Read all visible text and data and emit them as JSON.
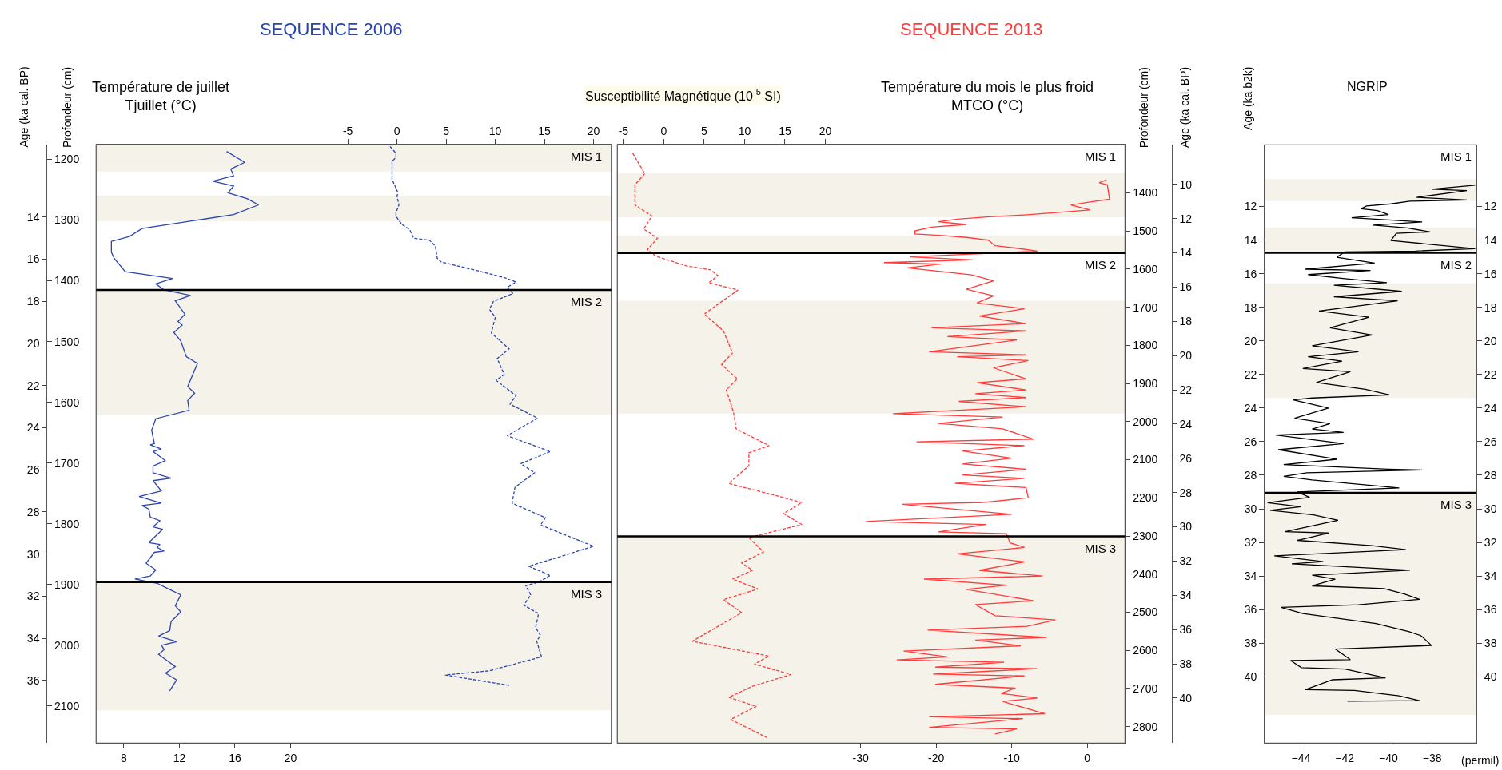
{
  "chart_data": [
    {
      "type": "line",
      "title": "SEQUENCE 2006",
      "xlabel": "Température de juillet\nTjuillet (°C)",
      "x2label": "Susceptibilité Magnétique (10$^{-5}$ SI)",
      "ylabel": "Profondeur (cm)",
      "y2label": "Age (ka cal. BP)",
      "xlim": [
        6,
        43.1
      ],
      "xticks": [
        8,
        12,
        16,
        20
      ],
      "x2lim": [
        -30.6,
        21.8
      ],
      "x2ticks": [
        -5,
        0,
        5,
        10,
        15,
        20
      ],
      "ylim": [
        2161,
        1176
      ],
      "yticks": [
        1200,
        1300,
        1400,
        1500,
        1600,
        1700,
        1800,
        1900,
        2000,
        2100
      ],
      "y2lim": [
        38.97,
        10.57
      ],
      "y2ticks": [
        14,
        16,
        18,
        20,
        22,
        24,
        26,
        28,
        30,
        32,
        34,
        36
      ],
      "series": [
        {
          "color": "#2a44b0",
          "line_style": "solid",
          "x": [
            15.4,
            16.7,
            15.7,
            15.9,
            14.4,
            15.9,
            15.5,
            16.9,
            17.7,
            15.9,
            9.3,
            8.4,
            7.1,
            7.1,
            7.3,
            8.1,
            11.5,
            10.3,
            10.9,
            12.8,
            11.7,
            12.4,
            11.9,
            12.2,
            11.6,
            12.1,
            12.5,
            13.3,
            12.6,
            13.1,
            12.6,
            12.7,
            10.3,
            10.0,
            10.2,
            9.9,
            10.7,
            10.1,
            11.0,
            10.1,
            10.1,
            11.4,
            10.1,
            10.7,
            9.1,
            10.7,
            9.3,
            9.8,
            9.9,
            10.6,
            10.1,
            10.8,
            9.8,
            10.6,
            10.4,
            10.9,
            10.2,
            9.6,
            10.3,
            9.9,
            8.8,
            10.4,
            11.1,
            12.1,
            11.7,
            12.1,
            11.4,
            11.3,
            10.5,
            11.8,
            10.7,
            10.9,
            10.5,
            11.7,
            11.0,
            11.8,
            11.3
          ],
          "values": [
            1187,
            1205,
            1216,
            1227,
            1236,
            1244,
            1255,
            1265,
            1275,
            1291,
            1314,
            1327,
            1335,
            1353,
            1363,
            1385,
            1396,
            1405,
            1415,
            1424,
            1433,
            1455,
            1467,
            1473,
            1485,
            1499,
            1525,
            1536,
            1574,
            1585,
            1597,
            1613,
            1627,
            1646,
            1668,
            1670,
            1677,
            1681,
            1696,
            1705,
            1716,
            1725,
            1729,
            1746,
            1755,
            1766,
            1770,
            1776,
            1789,
            1795,
            1805,
            1809,
            1831,
            1834,
            1839,
            1845,
            1847,
            1865,
            1876,
            1886,
            1891,
            1898,
            1906,
            1917,
            1935,
            1945,
            1961,
            1976,
            1985,
            1994,
            2000,
            2007,
            2015,
            2035,
            2046,
            2057,
            2075
          ]
        },
        {
          "color": "#2a44b0",
          "line_style": "dashed",
          "axis": "x2",
          "x": [
            -0.7,
            -0.1,
            -0.1,
            -0.5,
            -0.5,
            0.1,
            0.0,
            0.2,
            -0.1,
            -0.1,
            0.5,
            1.3,
            1.7,
            3.3,
            3.9,
            4.1,
            4.5,
            8.1,
            11.0,
            12.1,
            11.2,
            11.8,
            9.8,
            9.4,
            10.0,
            9.6,
            11.4,
            10.2,
            10.9,
            10.1,
            12.1,
            11.5,
            14.3,
            11.2,
            15.6,
            12.6,
            14.0,
            12.0,
            11.7,
            15.1,
            14.6,
            20.0,
            13.4,
            15.6,
            14.4,
            13.1,
            13.6,
            12.9,
            14.4,
            14.1,
            14.6,
            14.2,
            14.7,
            9.4,
            4.9,
            11.4
          ],
          "values": [
            1179,
            1190,
            1197,
            1203,
            1233,
            1255,
            1261,
            1275,
            1288,
            1294,
            1307,
            1316,
            1330,
            1333,
            1343,
            1363,
            1369,
            1383,
            1395,
            1402,
            1411,
            1421,
            1434,
            1447,
            1460,
            1486,
            1512,
            1528,
            1554,
            1564,
            1589,
            1603,
            1626,
            1655,
            1681,
            1701,
            1716,
            1740,
            1766,
            1790,
            1802,
            1837,
            1870,
            1885,
            1896,
            1902,
            1917,
            1934,
            1948,
            1971,
            1984,
            1993,
            2019,
            2042,
            2049,
            2066
          ]
        }
      ],
      "bands": [
        {
          "axis": "y",
          "from": 1176,
          "to": 1220,
          "color": "#f5f2ea"
        },
        {
          "axis": "y",
          "from": 1260,
          "to": 1302,
          "color": "#f5f2ea"
        },
        {
          "axis": "y",
          "from": 1415,
          "to": 1621,
          "color": "#f5f2ea"
        },
        {
          "axis": "y",
          "from": 1896,
          "to": 2107,
          "color": "#f5f2ea"
        }
      ],
      "ref_lines": [
        {
          "axis": "y",
          "value": 1415,
          "color": "#000000"
        },
        {
          "axis": "y",
          "value": 1896,
          "color": "#000000"
        }
      ],
      "annotations": [
        "MIS 1",
        "MIS 2",
        "MIS 3"
      ]
    },
    {
      "type": "line",
      "title": "SEQUENCE 2013",
      "xlabel": "Température du mois le plus froid\nMTCO (°C)",
      "ylabel": "Profondeur (cm)",
      "y2label": "Age (ka cal. BP)",
      "xlim": [
        -62.2,
        5.0
      ],
      "xticks": [
        -30,
        -20,
        -10,
        0
      ],
      "x2lim": [
        -5.75,
        57.1
      ],
      "x2ticks": [
        -5,
        0,
        5,
        10,
        15,
        20
      ],
      "ylim": [
        2843,
        1274
      ],
      "yticks": [
        1400,
        1500,
        1600,
        1700,
        1800,
        1900,
        2000,
        2100,
        2200,
        2300,
        2400,
        2500,
        2600,
        2700,
        2800
      ],
      "y2lim": [
        42.63,
        7.69
      ],
      "y2ticks": [
        10,
        12,
        14,
        16,
        18,
        20,
        22,
        24,
        26,
        28,
        30,
        32,
        34,
        36,
        38,
        40
      ],
      "series": [
        {
          "color": "#ff3b3b",
          "line_style": "solid",
          "x": [
            2.56,
            1.59,
            2.66,
            2.95,
            0.39,
            -2.17,
            0.39,
            -8.31,
            -12.9,
            -17.2,
            -19.7,
            -16.0,
            -20.6,
            -22.8,
            -22.8,
            -19.2,
            -16.0,
            -13.1,
            -12.2,
            -9.8,
            -6.6,
            -17.7,
            -23.5,
            -15.1,
            -26.9,
            -19.4,
            -23.8,
            -15.3,
            -12.4,
            -16.0,
            -12.4,
            -14.6,
            -8.3,
            -14.3,
            -8.1,
            -20.6,
            -8.1,
            -18.5,
            -9.3,
            -20.9,
            -8.1,
            -17.2,
            -7.8,
            -12.4,
            -8.1,
            -14.6,
            -8.1,
            -14.8,
            -8.1,
            -17.0,
            -8.1,
            -25.7,
            -11.2,
            -19.7,
            -11.2,
            -7.1,
            -22.6,
            -8.3,
            -16.5,
            -10.0,
            -16.5,
            -8.1,
            -16.5,
            -8.3,
            -17.5,
            -8.1,
            -7.8,
            -13.9,
            -24.5,
            -10.0,
            -29.3,
            -13.4,
            -19.7,
            -10.7,
            -10.2,
            -8.3,
            -17.2,
            -8.3,
            -14.3,
            -5.9,
            -21.6,
            -10.7,
            -16.0,
            -7.1,
            -14.8,
            -12.2,
            -4.2,
            -8.0,
            -21.1,
            -5.4,
            -14.8,
            -8.8,
            -24.3,
            -18.5,
            -25.2,
            -11.0,
            -20.1,
            -6.6,
            -20.4,
            -8.3,
            -20.1,
            -9.5,
            -11.4,
            -6.6,
            -11.2,
            -5.6,
            -20.9,
            -8.5,
            -20.9,
            -9.3,
            -12.2
          ],
          "values": [
            1366,
            1374,
            1379,
            1417,
            1424,
            1432,
            1445,
            1458,
            1463,
            1469,
            1476,
            1483,
            1490,
            1500,
            1508,
            1512,
            1517,
            1524,
            1539,
            1544,
            1553,
            1563,
            1568,
            1576,
            1583,
            1587,
            1597,
            1615,
            1631,
            1653,
            1670,
            1689,
            1704,
            1723,
            1743,
            1754,
            1762,
            1777,
            1786,
            1817,
            1825,
            1830,
            1840,
            1859,
            1888,
            1898,
            1917,
            1927,
            1937,
            1947,
            1961,
            1979,
            1988,
            2005,
            2019,
            2046,
            2053,
            2063,
            2077,
            2096,
            2111,
            2125,
            2140,
            2149,
            2162,
            2173,
            2200,
            2212,
            2217,
            2243,
            2262,
            2270,
            2289,
            2294,
            2318,
            2330,
            2347,
            2368,
            2390,
            2405,
            2413,
            2429,
            2440,
            2470,
            2480,
            2509,
            2520,
            2537,
            2547,
            2566,
            2573,
            2588,
            2602,
            2617,
            2625,
            2631,
            2644,
            2648,
            2662,
            2667,
            2689,
            2699,
            2713,
            2725,
            2734,
            2766,
            2774,
            2779,
            2802,
            2806,
            2819
          ]
        },
        {
          "color": "#ff3b3b",
          "line_style": "dashed",
          "axis": "x2",
          "x": [
            -3.85,
            -2.35,
            -3.57,
            -3.57,
            -1.45,
            -2.49,
            -0.77,
            -2.04,
            -1.0,
            2.85,
            5.79,
            6.7,
            5.57,
            9.19,
            6.92,
            5.02,
            7.38,
            8.51,
            7.15,
            9.1,
            7.74,
            8.64,
            8.96,
            13.03,
            10.54,
            10.54,
            8.05,
            17.1,
            14.84,
            17.1,
            10.54,
            12.35,
            9.64,
            11.0,
            8.51,
            11.67,
            7.38,
            9.64,
            6.47,
            3.53,
            13.03,
            11.22,
            15.75,
            11.0,
            8.05,
            11.45,
            8.28,
            12.8
          ],
          "values": [
            1296,
            1350,
            1379,
            1432,
            1461,
            1495,
            1519,
            1549,
            1566,
            1592,
            1602,
            1617,
            1636,
            1655,
            1689,
            1718,
            1762,
            1820,
            1850,
            1888,
            1917,
            1976,
            2019,
            2063,
            2082,
            2116,
            2162,
            2212,
            2241,
            2270,
            2304,
            2342,
            2371,
            2390,
            2413,
            2439,
            2467,
            2501,
            2540,
            2576,
            2615,
            2636,
            2663,
            2694,
            2723,
            2747,
            2781,
            2829
          ]
        }
      ],
      "bands": [
        {
          "axis": "y",
          "from": 1348,
          "to": 1464,
          "color": "#f5f2ea"
        },
        {
          "axis": "y",
          "from": 1512,
          "to": 1558,
          "color": "#f5f2ea"
        },
        {
          "axis": "y",
          "from": 1683,
          "to": 1979,
          "color": "#f5f2ea"
        },
        {
          "axis": "y",
          "from": 2301,
          "to": 2843,
          "color": "#f5f2ea"
        }
      ],
      "ref_lines": [
        {
          "axis": "y",
          "value": 1558,
          "color": "#000000"
        },
        {
          "axis": "y",
          "value": 2301,
          "color": "#000000"
        }
      ],
      "annotations": [
        "MIS 1",
        "MIS 2",
        "MIS 3"
      ]
    },
    {
      "type": "line",
      "title": "NGRIP",
      "xlabel": "(permil)",
      "ylabel": "Age (ka b2k)",
      "xlim": [
        -45.65,
        -35.98
      ],
      "xticks": [
        {
          "value": -44,
          "label": "−44"
        },
        {
          "value": -42,
          "label": "−42"
        },
        {
          "value": -40,
          "label": "−40"
        },
        {
          "value": -38,
          "label": "−38"
        }
      ],
      "ylim": [
        43.95,
        8.32
      ],
      "yticks": [
        12,
        14,
        16,
        18,
        20,
        22,
        24,
        26,
        28,
        30,
        32,
        34,
        36,
        38,
        40
      ],
      "y2lim": [
        43.95,
        8.32
      ],
      "y2ticks": [
        12,
        14,
        16,
        18,
        20,
        22,
        24,
        26,
        28,
        30,
        32,
        34,
        36,
        38,
        40
      ],
      "series": [
        {
          "color": "#000000",
          "line_style": "solid",
          "x": [
            -36.04,
            -38.03,
            -36.42,
            -38.71,
            -36.42,
            -39.02,
            -39.89,
            -41.0,
            -41.25,
            -40.5,
            -40.0,
            -41.68,
            -38.46,
            -40.69,
            -39.14,
            -38.09,
            -39.64,
            -39.89,
            -36.04,
            -38.77,
            -41.99,
            -42.36,
            -40.63,
            -43.79,
            -40.82,
            -43.67,
            -41.99,
            -40.07,
            -42.49,
            -39.39,
            -42.49,
            -39.58,
            -43.17,
            -40.88,
            -42.67,
            -40.75,
            -43.48,
            -41.37,
            -43.67,
            -42.12,
            -43.91,
            -41.74,
            -43.29,
            -41.06,
            -39.95,
            -43.48,
            -44.35,
            -42.74,
            -44.29,
            -42.67,
            -43.48,
            -42.05,
            -45.15,
            -42.05,
            -45.03,
            -42.36,
            -44.78,
            -40.01,
            -38.46,
            -43.73,
            -44.78,
            -43.48,
            -39.51,
            -44.16,
            -43.6,
            -45.52,
            -44.0,
            -45.4,
            -43.42,
            -42.3,
            -44.72,
            -42.74,
            -44.16,
            -40.75,
            -39.2,
            -45.21,
            -42.98,
            -44.41,
            -39.02,
            -43.48,
            -42.43,
            -43.48,
            -40.2,
            -39.27,
            -38.58,
            -41.37,
            -44.9,
            -43.91,
            -40.57,
            -39.08,
            -38.52,
            -38.03,
            -42.43,
            -41.74,
            -44.47,
            -43.98,
            -41.99,
            -40.13,
            -42.55,
            -43.79,
            -41.56,
            -39.51,
            -38.58,
            -41.87
          ],
          "values": [
            10.73,
            10.97,
            11.05,
            11.45,
            11.61,
            11.68,
            11.84,
            11.97,
            12.13,
            12.24,
            12.48,
            12.67,
            12.92,
            13.11,
            13.27,
            13.51,
            13.59,
            14.02,
            14.51,
            14.65,
            14.7,
            15.02,
            15.37,
            15.73,
            15.81,
            16.05,
            16.29,
            16.53,
            16.69,
            17.05,
            17.37,
            17.61,
            18.22,
            18.59,
            19.22,
            19.65,
            20.29,
            20.65,
            20.94,
            21.21,
            21.65,
            21.84,
            22.48,
            22.88,
            23.22,
            23.4,
            23.51,
            24.0,
            24.61,
            24.93,
            25.25,
            25.45,
            25.61,
            26.12,
            26.48,
            27.05,
            27.37,
            27.64,
            27.69,
            27.85,
            28.07,
            28.28,
            28.76,
            29.0,
            29.32,
            29.64,
            29.88,
            30.09,
            30.36,
            30.68,
            31.36,
            31.44,
            31.88,
            32.19,
            32.43,
            32.8,
            33.15,
            33.28,
            33.66,
            33.95,
            34.19,
            34.59,
            34.75,
            35.07,
            35.39,
            35.71,
            35.87,
            36.24,
            36.83,
            37.31,
            37.55,
            38.14,
            38.35,
            38.98,
            39.03,
            39.46,
            39.54,
            40.07,
            40.18,
            40.77,
            40.82,
            41.14,
            41.42,
            41.46
          ]
        }
      ],
      "bands": [
        {
          "axis": "y",
          "from": 10.37,
          "to": 11.68,
          "color": "#f5f2ea"
        },
        {
          "axis": "y",
          "from": 13.26,
          "to": 14.76,
          "color": "#f5f2ea"
        },
        {
          "axis": "y",
          "from": 16.57,
          "to": 23.4,
          "color": "#f5f2ea"
        },
        {
          "axis": "y",
          "from": 29.05,
          "to": 42.27,
          "color": "#f5f2ea"
        }
      ],
      "ref_lines": [
        {
          "axis": "y",
          "value": 14.76,
          "color": "#000000"
        },
        {
          "axis": "y",
          "value": 29.05,
          "color": "#000000"
        }
      ],
      "annotations": [
        "MIS 1",
        "MIS 2",
        "MIS 3"
      ]
    }
  ]
}
